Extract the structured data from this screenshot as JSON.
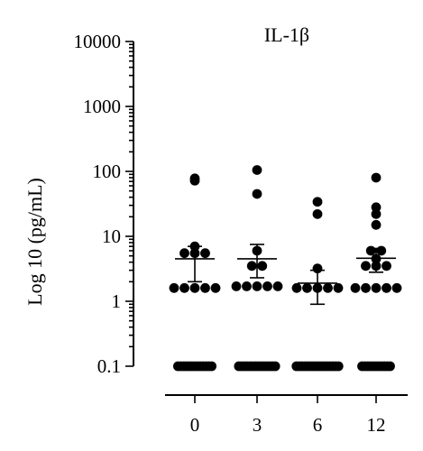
{
  "chart_data": {
    "type": "scatter",
    "title": "IL-1β",
    "ylabel": "Log 10 (pg/mL)",
    "xlabel": "",
    "yscale": "log",
    "ylim": [
      0.1,
      10000
    ],
    "y_ticks": [
      0.1,
      1,
      10,
      100,
      1000,
      10000
    ],
    "y_tick_labels": [
      "0.1",
      "1",
      "10",
      "100",
      "1000",
      "10000"
    ],
    "categories": [
      "0",
      "3",
      "6",
      "12"
    ],
    "groups": [
      {
        "category": "0",
        "mean": 4.5,
        "sem_low": 2.0,
        "sem_high": 7.0,
        "points": [
          72,
          78,
          7.0,
          5.5,
          5.5,
          5.5,
          1.6,
          1.6,
          1.6,
          1.6,
          1.6,
          0.1,
          0.1,
          0.1,
          0.1,
          0.1,
          0.1,
          0.1,
          0.1,
          0.1,
          0.1,
          0.1,
          0.1,
          0.1
        ]
      },
      {
        "category": "3",
        "mean": 4.5,
        "sem_low": 2.3,
        "sem_high": 7.5,
        "points": [
          105,
          45,
          6.0,
          3.5,
          3.5,
          1.7,
          1.7,
          1.7,
          1.7,
          1.7,
          0.1,
          0.1,
          0.1,
          0.1,
          0.1,
          0.1,
          0.1,
          0.1,
          0.1,
          0.1,
          0.1,
          0.1,
          0.1,
          0.1
        ]
      },
      {
        "category": "6",
        "mean": 1.9,
        "sem_low": 0.9,
        "sem_high": 3.0,
        "points": [
          34,
          22,
          3.2,
          1.6,
          1.6,
          1.6,
          1.6,
          1.6,
          0.1,
          0.1,
          0.1,
          0.1,
          0.1,
          0.1,
          0.1,
          0.1,
          0.1,
          0.1,
          0.1,
          0.1,
          0.1,
          0.1,
          0.1,
          0.1
        ]
      },
      {
        "category": "12",
        "mean": 4.6,
        "sem_low": 2.8,
        "sem_high": 6.5,
        "points": [
          80,
          28,
          22,
          15,
          6.0,
          6.0,
          4.5,
          3.5,
          3.5,
          3.5,
          1.6,
          1.6,
          1.6,
          1.6,
          1.6,
          0.1,
          0.1,
          0.1,
          0.1,
          0.1,
          0.1,
          0.1,
          0.1,
          0.1,
          0.1,
          0.1
        ]
      }
    ],
    "grid": false,
    "legend": "none"
  }
}
